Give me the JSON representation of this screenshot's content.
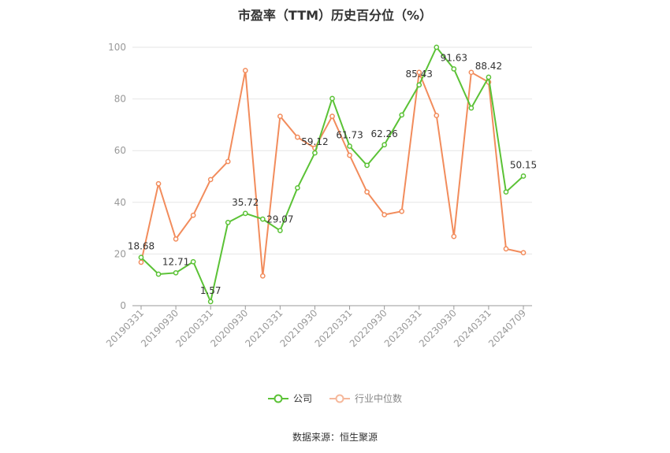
{
  "title": "市盈率（TTM）历史百分位（%）",
  "source": "数据来源：恒生聚源",
  "chart_data": {
    "type": "line",
    "title": "市盈率（TTM）历史百分位（%）",
    "ylim": [
      0,
      100
    ],
    "yticks": [
      0,
      20,
      40,
      60,
      80,
      100
    ],
    "grid": true,
    "legend_position": "bottom",
    "x": [
      "20190331",
      "20190630",
      "20190930",
      "20191231",
      "20200331",
      "20200630",
      "20200930",
      "20201231",
      "20210331",
      "20210630",
      "20210930",
      "20211231",
      "20220331",
      "20220630",
      "20220930",
      "20221231",
      "20230331",
      "20230630",
      "20230930",
      "20231231",
      "20240331",
      "20240630",
      "20240709"
    ],
    "x_tick_labels": [
      "20190331",
      "20190930",
      "20200331",
      "20200930",
      "20210331",
      "20210930",
      "20220331",
      "20220930",
      "20230331",
      "20230930",
      "20240331",
      "20240709"
    ],
    "series": [
      {
        "name": "公司",
        "color": "#5bc236",
        "values": [
          18.68,
          12.2,
          12.71,
          17.0,
          1.57,
          32.2,
          35.72,
          33.5,
          29.07,
          45.6,
          59.12,
          80.2,
          61.73,
          54.3,
          62.26,
          73.8,
          85.43,
          100,
          91.63,
          76.5,
          88.42,
          44.0,
          50.15
        ],
        "labels": {
          "0": "18.68",
          "2": "12.71",
          "4": "1.57",
          "6": "35.72",
          "8": "29.07",
          "10": "59.12",
          "12": "61.73",
          "14": "62.26",
          "16": "85.43",
          "18": "91.63",
          "20": "88.42",
          "22": "50.15"
        }
      },
      {
        "name": "行业中位数",
        "color": "#f28c5c",
        "values": [
          16.8,
          47.2,
          25.8,
          35.0,
          48.8,
          55.8,
          91.0,
          11.5,
          73.3,
          65.2,
          61.0,
          73.3,
          58.2,
          44.0,
          35.2,
          36.5,
          90.3,
          73.6,
          26.8,
          90.3,
          86.5,
          22.0,
          20.5
        ]
      }
    ]
  }
}
